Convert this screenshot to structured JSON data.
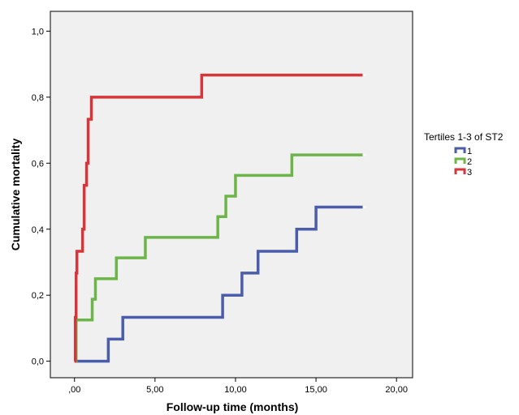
{
  "chart_data": {
    "type": "line",
    "step": true,
    "xlabel": "Follow-up time (months)",
    "ylabel": "Cumulative mortality",
    "xlim": [
      -1.5,
      21.0
    ],
    "ylim": [
      -0.05,
      1.06
    ],
    "x_ticks": [
      0,
      5,
      10,
      15,
      20
    ],
    "x_tick_labels": [
      ",00",
      "5,00",
      "10,00",
      "15,00",
      "20,00"
    ],
    "y_ticks": [
      0,
      0.2,
      0.4,
      0.6,
      0.8,
      1.0
    ],
    "y_tick_labels": [
      "0,0",
      "0,2",
      "0,4",
      "0,6",
      "0,8",
      "1,0"
    ],
    "grid": false,
    "plot_background": "#f0f0f0",
    "legend": {
      "title": "Tertiles 1-3 of ST2",
      "position": "right"
    },
    "series": [
      {
        "name": "1",
        "color": "#4a5dab",
        "points": [
          [
            0,
            0
          ],
          [
            2.1,
            0.067
          ],
          [
            3.0,
            0.133
          ],
          [
            9.2,
            0.2
          ],
          [
            10.4,
            0.267
          ],
          [
            11.4,
            0.333
          ],
          [
            13.8,
            0.4
          ],
          [
            15.0,
            0.467
          ],
          [
            17.9,
            0.467
          ]
        ]
      },
      {
        "name": "2",
        "color": "#6cb549",
        "points": [
          [
            0,
            0
          ],
          [
            0.1,
            0.125
          ],
          [
            1.1,
            0.188
          ],
          [
            1.3,
            0.25
          ],
          [
            2.6,
            0.313
          ],
          [
            4.4,
            0.375
          ],
          [
            8.9,
            0.438
          ],
          [
            9.4,
            0.5
          ],
          [
            10.0,
            0.563
          ],
          [
            13.5,
            0.625
          ],
          [
            17.9,
            0.625
          ]
        ]
      },
      {
        "name": "3",
        "color": "#d6363a",
        "points": [
          [
            0,
            0
          ],
          [
            0.05,
            0.133
          ],
          [
            0.1,
            0.267
          ],
          [
            0.15,
            0.333
          ],
          [
            0.5,
            0.4
          ],
          [
            0.6,
            0.533
          ],
          [
            0.75,
            0.6
          ],
          [
            0.85,
            0.733
          ],
          [
            1.05,
            0.8
          ],
          [
            7.9,
            0.867
          ],
          [
            17.9,
            0.867
          ]
        ]
      }
    ]
  }
}
